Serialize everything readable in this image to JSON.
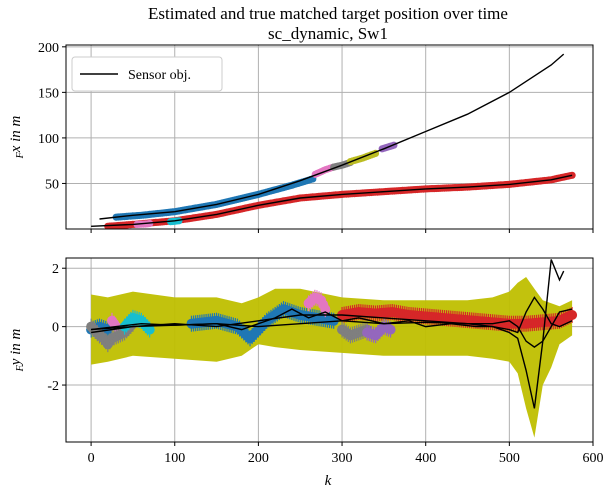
{
  "chart_data": {
    "type": "line",
    "title": "Estimated and true matched target position over time",
    "subtitle": "sc_dynamic, Sw1",
    "xlabel": "k",
    "xlim": [
      -30,
      600
    ],
    "x_ticks": [
      "0",
      "100",
      "200",
      "300",
      "400",
      "500",
      "600"
    ],
    "x_tick_values": [
      0,
      100,
      200,
      300,
      400,
      500,
      600
    ],
    "legend": {
      "placement": "top-left",
      "entries": [
        "Sensor obj."
      ]
    },
    "grid": true,
    "colors": {
      "sensor": "#000000",
      "band": "#bfbf00",
      "red": "#d62728",
      "blue": "#1f77b4",
      "pink": "#e377c2",
      "gray": "#7f7f7f",
      "cyan": "#17becf",
      "purple": "#9467bd",
      "olive": "#bcbd22"
    },
    "panels": [
      {
        "id": "top",
        "ylabel": "Fx in m",
        "ylabel_sub": "F",
        "ylabel_main": "x in m",
        "ylim": [
          0,
          202
        ],
        "y_ticks": [
          "50",
          "100",
          "150",
          "200"
        ],
        "y_tick_values": [
          50,
          100,
          150,
          200
        ],
        "series": [
          {
            "name": "Sensor obj.",
            "role": "sensor",
            "x": [
              10,
              50,
              100,
              150,
              200,
              250,
              300,
              350,
              400,
              450,
              500,
              550,
              565
            ],
            "y": [
              11,
              15,
              19,
              27,
              38,
              53,
              70,
              88,
              107,
              126,
              150,
              180,
              192
            ]
          },
          {
            "role": "sensor",
            "x": [
              0,
              50,
              100,
              150,
              200,
              250,
              300,
              350,
              400,
              450,
              500,
              550,
              575
            ],
            "y": [
              3,
              5,
              9,
              16,
              26,
              34,
              38,
              41,
              44,
              46,
              49,
              54,
              59
            ]
          }
        ],
        "estimates": [
          {
            "color": "red",
            "x": [
              20,
              50,
              100,
              150,
              200,
              250,
              300,
              350,
              400,
              450,
              500,
              550,
              575
            ],
            "y": [
              3,
              5,
              9,
              16,
              26,
              34,
              38,
              41,
              44,
              46,
              49,
              54,
              59
            ]
          },
          {
            "color": "blue",
            "x": [
              30,
              60,
              100,
              150,
              200,
              240,
              265
            ],
            "y": [
              13,
              15,
              19,
              27,
              38,
              48,
              55
            ]
          },
          {
            "color": "pink",
            "x": [
              55,
              65,
              70
            ],
            "y": [
              5,
              5.5,
              6
            ]
          },
          {
            "color": "pink",
            "x": [
              268,
              280,
              290
            ],
            "y": [
              60,
              65,
              68
            ]
          },
          {
            "color": "gray",
            "x": [
              290,
              300,
              310
            ],
            "y": [
              68,
              70,
              73
            ]
          },
          {
            "color": "olive",
            "x": [
              310,
              325,
              340
            ],
            "y": [
              74,
              78,
              83
            ]
          },
          {
            "color": "purple",
            "x": [
              348,
              355,
              362
            ],
            "y": [
              88,
              90,
              92
            ]
          },
          {
            "color": "cyan",
            "x": [
              95,
              105
            ],
            "y": [
              8,
              9
            ]
          }
        ]
      },
      {
        "id": "bottom",
        "ylabel": "Fy in m",
        "ylabel_sub": "F",
        "ylabel_main": "y in m",
        "ylim": [
          -3.95,
          2.35
        ],
        "y_ticks": [
          "2",
          "0",
          "-2"
        ],
        "y_tick_values": [
          2,
          0,
          -2
        ],
        "band": {
          "x": [
            0,
            20,
            50,
            100,
            150,
            180,
            200,
            220,
            250,
            300,
            350,
            400,
            450,
            480,
            500,
            510,
            520,
            530,
            540,
            550,
            560,
            575
          ],
          "upper": [
            1.1,
            1.0,
            1.2,
            1.0,
            1.0,
            0.8,
            1.0,
            1.3,
            1.3,
            1.0,
            0.9,
            0.9,
            0.9,
            1.0,
            1.2,
            1.5,
            1.7,
            1.3,
            0.9,
            0.8,
            0.7,
            0.9
          ],
          "lower": [
            -1.3,
            -1.2,
            -1.0,
            -1.1,
            -1.2,
            -1.0,
            -0.6,
            -0.7,
            -0.8,
            -0.9,
            -1.0,
            -1.0,
            -1.0,
            -1.1,
            -1.2,
            -1.6,
            -2.8,
            -3.8,
            -2.0,
            -1.4,
            -0.6,
            -0.3
          ]
        },
        "series": [
          {
            "role": "sensor",
            "x": [
              0,
              30,
              60,
              100,
              150,
              180,
              200,
              220,
              240,
              260,
              280,
              300,
              320,
              350,
              380,
              400,
              430,
              460,
              480,
              500,
              510,
              520,
              530,
              540,
              550,
              560,
              565
            ],
            "y": [
              -0.1,
              0.0,
              0.1,
              0.05,
              0.1,
              -0.1,
              0.1,
              0.3,
              0.6,
              0.3,
              0.5,
              0.2,
              0.3,
              0.1,
              0.2,
              0.0,
              0.1,
              0.0,
              0.0,
              -0.2,
              -0.4,
              -1.5,
              -2.8,
              -0.5,
              2.3,
              1.6,
              1.9
            ]
          },
          {
            "role": "sensor",
            "x": [
              0,
              50,
              100,
              150,
              200,
              250,
              300,
              350,
              400,
              450,
              480,
              500,
              510,
              520,
              530,
              540,
              550,
              560,
              575
            ],
            "y": [
              -0.2,
              0.0,
              0.1,
              0.0,
              0.2,
              0.4,
              0.4,
              0.3,
              0.2,
              0.1,
              0.0,
              -0.1,
              -0.2,
              0.5,
              1.0,
              0.6,
              0.1,
              0.0,
              0.2
            ]
          },
          {
            "role": "sensor",
            "x": [
              0,
              50,
              100,
              150,
              200,
              250,
              300,
              350,
              400,
              450,
              480,
              500,
              510,
              520,
              530,
              540,
              550,
              560,
              575
            ],
            "y": [
              -0.1,
              0.0,
              0.05,
              0.1,
              0.0,
              0.1,
              0.2,
              0.1,
              0.15,
              0.1,
              0.1,
              0.2,
              0.0,
              -0.5,
              -0.7,
              -0.5,
              0.0,
              0.5,
              0.6
            ]
          }
        ],
        "estimates": [
          {
            "color": "red",
            "x": [
              300,
              320,
              340,
              360,
              380,
              400,
              420,
              440,
              460,
              480,
              500,
              520,
              540,
              560,
              575
            ],
            "y": [
              0.4,
              0.5,
              0.45,
              0.5,
              0.4,
              0.35,
              0.3,
              0.25,
              0.2,
              0.15,
              0.1,
              0.1,
              0.15,
              0.2,
              0.4
            ]
          },
          {
            "color": "blue",
            "x": [
              120,
              150,
              175,
              190,
              210,
              230,
              250,
              270,
              290
            ],
            "y": [
              0.1,
              0.2,
              0.0,
              -0.4,
              0.2,
              0.6,
              0.4,
              0.3,
              0.2
            ]
          },
          {
            "color": "blue",
            "x": [
              0,
              10,
              20
            ],
            "y": [
              -0.1,
              0.0,
              -0.1
            ]
          },
          {
            "color": "pink",
            "x": [
              260,
              268,
              275,
              280
            ],
            "y": [
              0.8,
              1.0,
              0.9,
              0.6
            ]
          },
          {
            "color": "pink",
            "x": [
              25,
              30,
              35
            ],
            "y": [
              0.2,
              0.0,
              -0.2
            ]
          },
          {
            "color": "gray",
            "x": [
              0,
              10,
              15,
              20,
              25,
              40,
              50
            ],
            "y": [
              0.0,
              -0.3,
              -0.4,
              -0.6,
              -0.4,
              -0.2,
              0.1
            ]
          },
          {
            "color": "gray",
            "x": [
              300,
              310,
              320,
              330
            ],
            "y": [
              -0.1,
              -0.3,
              -0.2,
              -0.1
            ]
          },
          {
            "color": "cyan",
            "x": [
              40,
              50,
              60,
              70
            ],
            "y": [
              0.0,
              0.3,
              0.2,
              -0.1
            ]
          },
          {
            "color": "purple",
            "x": [
              330,
              340,
              350,
              358
            ],
            "y": [
              -0.2,
              -0.3,
              0.0,
              -0.1
            ]
          }
        ]
      }
    ]
  }
}
